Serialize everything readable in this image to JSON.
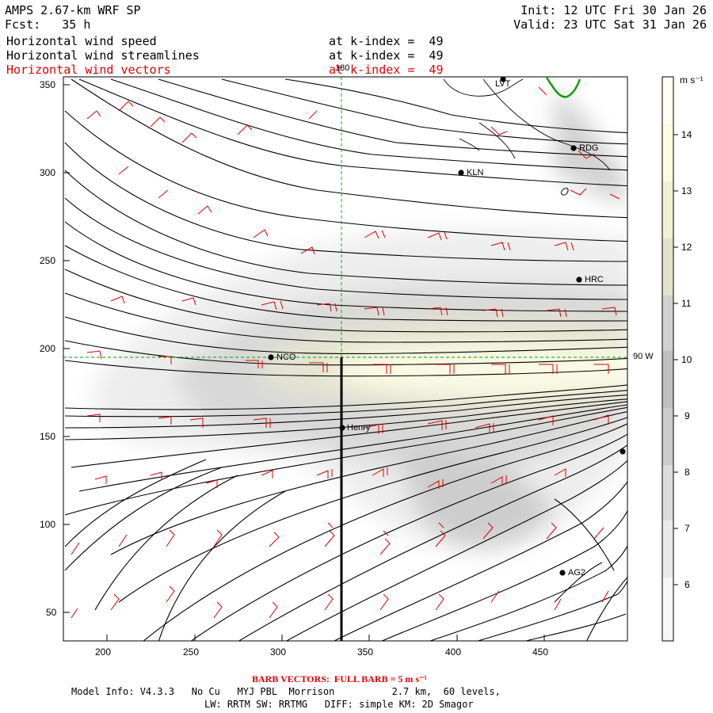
{
  "header": {
    "model": "AMPS 2.67-km WRF SP",
    "init": "Init: 12 UTC Fri 30 Jan 26",
    "fcst_label": "Fcst:",
    "fcst_value": "35 h",
    "valid": "Valid: 23 UTC Sat 31 Jan 26"
  },
  "fields": [
    {
      "name": "Horizontal wind speed",
      "level": "at k-index =  49",
      "color": "#000000"
    },
    {
      "name": "Horizontal wind streamlines",
      "level": "at k-index =  49",
      "color": "#000000"
    },
    {
      "name": "Horizontal wind vectors",
      "level": "at k-index =  49",
      "color": "#e00000"
    }
  ],
  "axes": {
    "x_ticks": [
      "200",
      "250",
      "300",
      "350",
      "400",
      "450"
    ],
    "y_ticks": [
      "350",
      "300",
      "250",
      "200",
      "150",
      "100",
      "50"
    ],
    "meridian_label": "180",
    "parallel_label": "90 W"
  },
  "stations": [
    {
      "name": "LVT"
    },
    {
      "name": "RDG"
    },
    {
      "name": "KLN"
    },
    {
      "name": "HRC"
    },
    {
      "name": "NCO"
    },
    {
      "name": "Henry"
    },
    {
      "name": "AG2"
    }
  ],
  "colorbar": {
    "unit": "m s⁻¹",
    "labels": [
      "14",
      "13",
      "12",
      "11",
      "10",
      "9",
      "8",
      "7",
      "6"
    ],
    "colors": [
      "#fffff0",
      "#fcfce2",
      "#f0f0d2",
      "#e2e2cc",
      "#d0d0d0",
      "#c0c0c0",
      "#cbcbcb",
      "#dcdcdc",
      "#eaeaea",
      "#f6f6f6"
    ]
  },
  "footer": {
    "barb": "BARB VECTORS:  FULL BARB = 5 m s⁻¹",
    "line1": "Model Info: V4.3.3   No Cu   MYJ PBL  Morrison          2.7 km,  60 levels,",
    "line2": "LW: RRTM SW: RRTMG   DIFF: simple KM: 2D Smagor"
  }
}
